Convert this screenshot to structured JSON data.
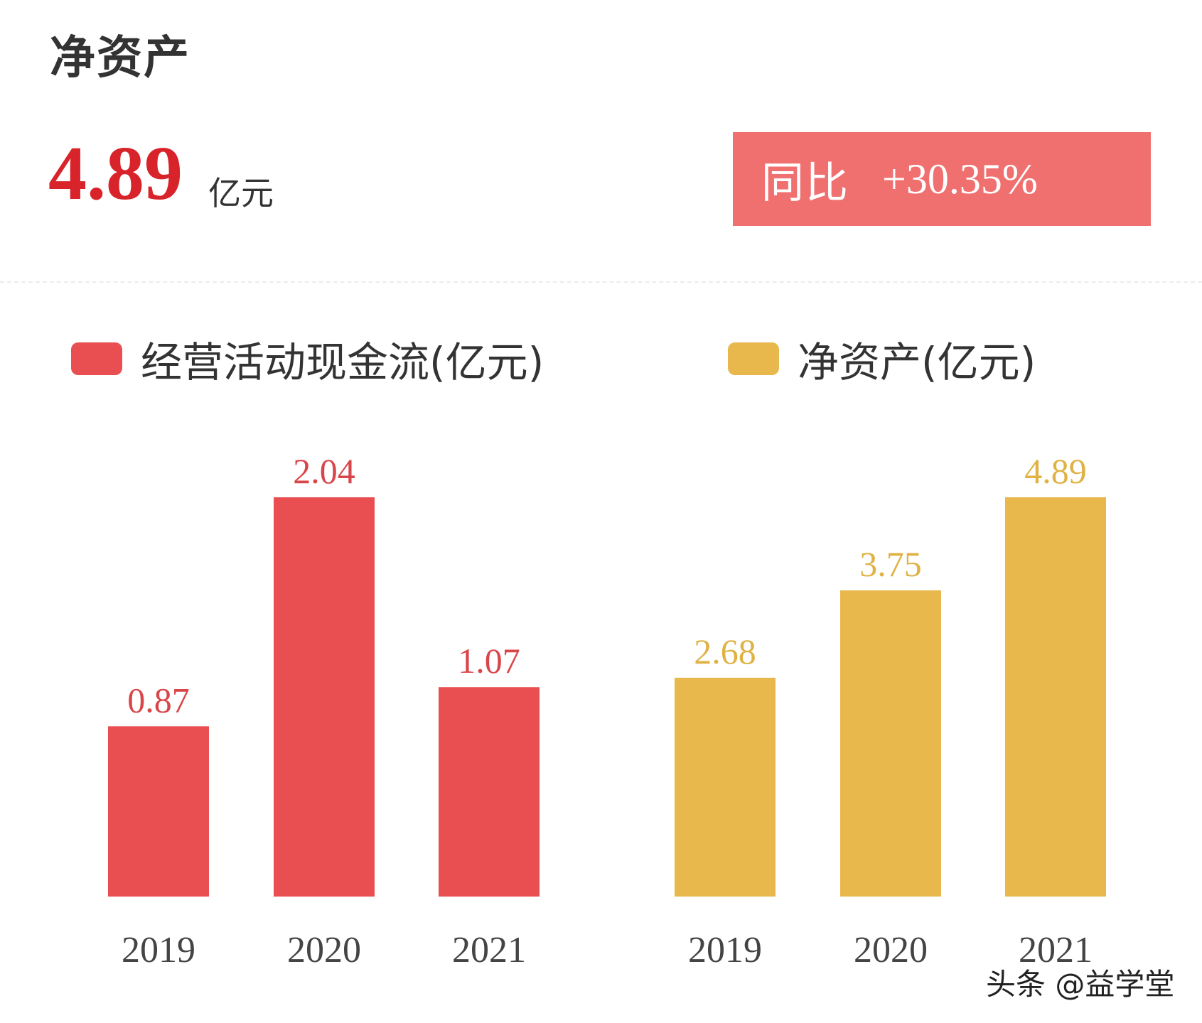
{
  "header": {
    "title": "净资产",
    "value": "4.89",
    "unit": "亿元",
    "yoy_label": "同比",
    "yoy_value": "+30.35%",
    "yoy_color": "#f07070",
    "value_color": "#d8232a"
  },
  "legend": [
    {
      "label": "经营活动现金流(亿元)",
      "color": "#e94e50"
    },
    {
      "label": "净资产(亿元)",
      "color": "#e9b84c"
    }
  ],
  "chart_data": [
    {
      "type": "bar",
      "categories": [
        "2019",
        "2020",
        "2021"
      ],
      "values": [
        0.87,
        2.04,
        1.07
      ],
      "labels": [
        "0.87",
        "2.04",
        "1.07"
      ],
      "series_name": "经营活动现金流(亿元)",
      "color": "#e94e50",
      "label_color": "#d9464a",
      "ylim": [
        0,
        2.04
      ],
      "grid": false,
      "legend_position": "top-left"
    },
    {
      "type": "bar",
      "categories": [
        "2019",
        "2020",
        "2021"
      ],
      "values": [
        2.68,
        3.75,
        4.89
      ],
      "labels": [
        "2.68",
        "3.75",
        "4.89"
      ],
      "series_name": "净资产(亿元)",
      "color": "#e9b84c",
      "label_color": "#e0b244",
      "ylim": [
        0,
        4.89
      ],
      "grid": false,
      "legend_position": "top-right"
    }
  ],
  "watermark": "头条 @益学堂"
}
